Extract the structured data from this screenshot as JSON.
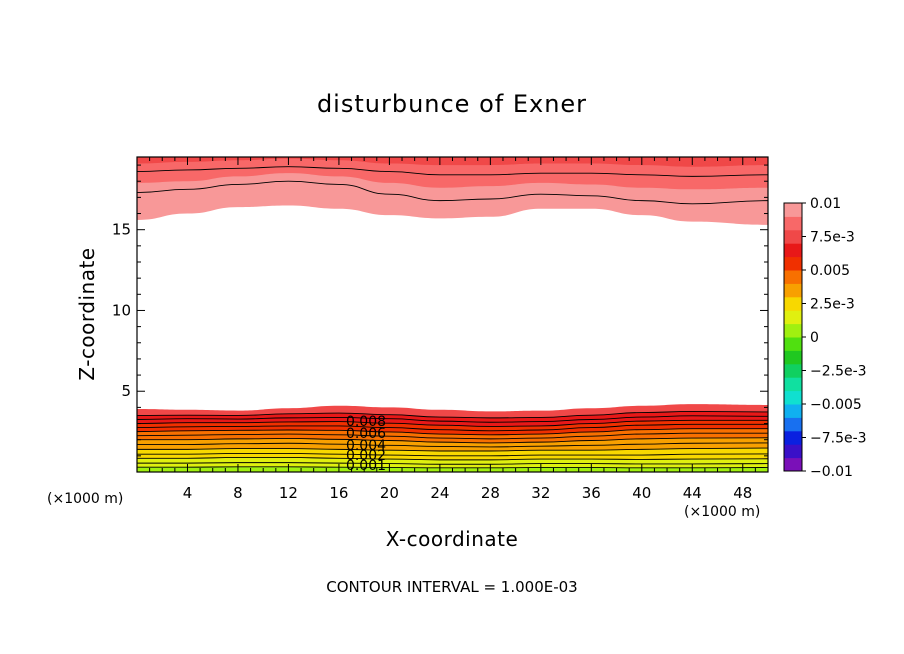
{
  "chart_data": {
    "type": "contour",
    "title": "disturbunce of Exner",
    "xlabel": "X-coordinate",
    "ylabel": "Z-coordinate",
    "x_unit": "(×1000 m)",
    "y_unit": "(×1000 m)",
    "xlim": [
      0,
      50
    ],
    "ylim": [
      0,
      19.5
    ],
    "x_ticks": [
      4,
      8,
      12,
      16,
      20,
      24,
      28,
      32,
      36,
      40,
      44,
      48
    ],
    "y_ticks": [
      5,
      10,
      15
    ],
    "footer": "CONTOUR INTERVAL = 1.000E-03",
    "contour_interval": 0.001,
    "contour_labels": [
      "0.008",
      "0.006",
      "0.004",
      "0.002",
      "0.001"
    ],
    "colorbar": {
      "range": [
        -0.01,
        0.01
      ],
      "ticks": [
        {
          "value": 0.01,
          "label": "0.01"
        },
        {
          "value": 0.0075,
          "label": "7.5e-3"
        },
        {
          "value": 0.005,
          "label": "0.005"
        },
        {
          "value": 0.0025,
          "label": "2.5e-3"
        },
        {
          "value": 0,
          "label": "0"
        },
        {
          "value": -0.0025,
          "label": "−2.5e-3"
        },
        {
          "value": -0.005,
          "label": "−0.005"
        },
        {
          "value": -0.0075,
          "label": "−7.5e-3"
        },
        {
          "value": -0.01,
          "label": "−0.01"
        }
      ],
      "colors": [
        "#7a10b8",
        "#3a10c8",
        "#0a20e0",
        "#1870f0",
        "#10b0f0",
        "#10e0d0",
        "#10e0a0",
        "#10d060",
        "#20c820",
        "#50e010",
        "#a0f010",
        "#e0f010",
        "#f8d800",
        "#f8a000",
        "#f87000",
        "#f03000",
        "#e81818",
        "#f04848",
        "#f86868",
        "#f89898"
      ]
    },
    "upper_band_contours": [
      {
        "level": 0.008,
        "z": [
          17.3,
          17.5,
          17.8,
          18.0,
          17.8,
          17.2,
          16.8,
          16.9,
          17.2,
          17.1,
          16.8,
          16.6,
          16.8
        ]
      },
      {
        "level": 0.009,
        "z": [
          18.6,
          18.7,
          18.8,
          18.9,
          18.8,
          18.6,
          18.4,
          18.4,
          18.5,
          18.5,
          18.4,
          18.3,
          18.4
        ]
      }
    ],
    "upper_band_fill_edges": [
      {
        "level": 0.007,
        "z": [
          15.6,
          16.0,
          16.4,
          16.5,
          16.3,
          15.9,
          15.7,
          15.8,
          16.3,
          16.3,
          15.9,
          15.5,
          15.3
        ]
      },
      {
        "level": 0.0085,
        "z": [
          17.9,
          18.0,
          18.3,
          18.5,
          18.3,
          17.9,
          17.6,
          17.7,
          17.9,
          17.8,
          17.6,
          17.5,
          17.6
        ]
      },
      {
        "level": 0.0095,
        "z": [
          19.1,
          19.2,
          19.3,
          19.4,
          19.3,
          19.1,
          19.0,
          19.0,
          19.1,
          19.1,
          19.0,
          18.9,
          19.0
        ]
      }
    ],
    "lower_band_contours": [
      {
        "level": 0.001,
        "z": [
          0.3,
          0.3,
          0.32,
          0.32,
          0.3,
          0.28,
          0.26,
          0.26,
          0.28,
          0.28,
          0.26,
          0.26,
          0.28
        ]
      },
      {
        "level": 0.0015,
        "z": [
          0.55,
          0.55,
          0.58,
          0.58,
          0.55,
          0.52,
          0.48,
          0.48,
          0.52,
          0.52,
          0.5,
          0.5,
          0.52
        ]
      },
      {
        "level": 0.002,
        "z": [
          0.85,
          0.85,
          0.9,
          0.9,
          0.85,
          0.8,
          0.75,
          0.75,
          0.8,
          0.8,
          0.78,
          0.8,
          0.82
        ]
      },
      {
        "level": 0.0025,
        "z": [
          1.1,
          1.1,
          1.15,
          1.15,
          1.1,
          1.05,
          1.0,
          1.0,
          1.05,
          1.05,
          1.05,
          1.1,
          1.12
        ]
      },
      {
        "level": 0.003,
        "z": [
          1.4,
          1.4,
          1.45,
          1.45,
          1.4,
          1.35,
          1.3,
          1.3,
          1.35,
          1.35,
          1.4,
          1.45,
          1.48
        ]
      },
      {
        "level": 0.0035,
        "z": [
          1.7,
          1.7,
          1.75,
          1.78,
          1.72,
          1.65,
          1.58,
          1.55,
          1.6,
          1.65,
          1.72,
          1.78,
          1.8
        ]
      },
      {
        "level": 0.004,
        "z": [
          2.0,
          2.0,
          2.05,
          2.08,
          2.02,
          1.95,
          1.85,
          1.8,
          1.85,
          1.95,
          2.05,
          2.1,
          2.12
        ]
      },
      {
        "level": 0.0045,
        "z": [
          2.25,
          2.28,
          2.32,
          2.35,
          2.3,
          2.22,
          2.1,
          2.05,
          2.1,
          2.22,
          2.35,
          2.4,
          2.4
        ]
      },
      {
        "level": 0.005,
        "z": [
          2.5,
          2.55,
          2.58,
          2.6,
          2.58,
          2.48,
          2.35,
          2.3,
          2.35,
          2.48,
          2.62,
          2.68,
          2.68
        ]
      },
      {
        "level": 0.0055,
        "z": [
          2.75,
          2.8,
          2.82,
          2.85,
          2.85,
          2.75,
          2.62,
          2.55,
          2.6,
          2.75,
          2.9,
          2.95,
          2.95
        ]
      },
      {
        "level": 0.006,
        "z": [
          3.0,
          3.05,
          3.05,
          3.1,
          3.12,
          3.02,
          2.9,
          2.82,
          2.85,
          3.0,
          3.15,
          3.2,
          3.2
        ]
      },
      {
        "level": 0.0065,
        "z": [
          3.25,
          3.3,
          3.28,
          3.35,
          3.38,
          3.3,
          3.15,
          3.08,
          3.12,
          3.25,
          3.4,
          3.48,
          3.45
        ]
      },
      {
        "level": 0.007,
        "z": [
          3.5,
          3.52,
          3.5,
          3.6,
          3.65,
          3.55,
          3.4,
          3.35,
          3.38,
          3.52,
          3.68,
          3.75,
          3.72
        ]
      }
    ],
    "lower_band_fill_edge": {
      "level": 0.0075,
      "z": [
        3.9,
        3.85,
        3.8,
        3.95,
        4.1,
        4.0,
        3.85,
        3.75,
        3.8,
        3.95,
        4.1,
        4.2,
        4.15
      ]
    },
    "contour_x": [
      0,
      4,
      8,
      12,
      16,
      20,
      24,
      28,
      32,
      36,
      40,
      44,
      50
    ]
  }
}
